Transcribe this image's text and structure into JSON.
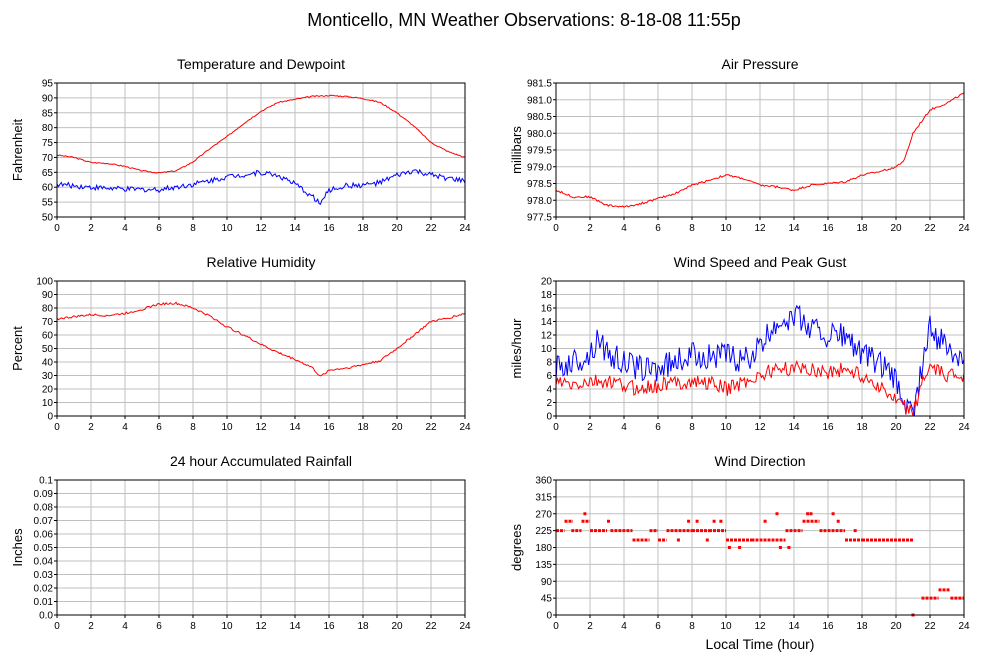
{
  "title": "Monticello, MN Weather Observations: 8-18-08 11:55p",
  "xlabel_main": "Local Time (hour)",
  "colors": {
    "red": "#ff0000",
    "blue": "#0000ff",
    "grid": "#c0c0c0",
    "frame": "#000000"
  },
  "chart_data": [
    {
      "type": "line",
      "title": "Temperature and Dewpoint",
      "ylabel": "Fahrenheit",
      "xlim": [
        0,
        24
      ],
      "ylim": [
        50,
        95
      ],
      "xticks": [
        0,
        2,
        4,
        6,
        8,
        10,
        12,
        14,
        16,
        18,
        20,
        22,
        24
      ],
      "yticks": [
        50,
        55,
        60,
        65,
        70,
        75,
        80,
        85,
        90,
        95
      ],
      "grid": true,
      "series": [
        {
          "color": "#ff0000",
          "noise": 0.2,
          "points": [
            [
              0,
              70.8
            ],
            [
              1,
              70
            ],
            [
              2,
              68.3
            ],
            [
              3,
              68
            ],
            [
              4,
              67
            ],
            [
              5,
              65.5
            ],
            [
              6,
              64.8
            ],
            [
              7,
              65.5
            ],
            [
              8,
              68.5
            ],
            [
              9,
              73
            ],
            [
              10,
              77
            ],
            [
              11,
              81.5
            ],
            [
              12,
              85.5
            ],
            [
              13,
              88.5
            ],
            [
              14,
              89.5
            ],
            [
              15,
              90.5
            ],
            [
              16,
              90.8
            ],
            [
              17,
              90.5
            ],
            [
              18,
              89.8
            ],
            [
              19,
              88.5
            ],
            [
              20,
              85
            ],
            [
              21,
              80.5
            ],
            [
              22,
              75
            ],
            [
              23,
              72
            ],
            [
              24,
              70
            ]
          ]
        },
        {
          "color": "#0000ff",
          "noise": 0.9,
          "points": [
            [
              0,
              61
            ],
            [
              2,
              60
            ],
            [
              4,
              59.3
            ],
            [
              6,
              59.2
            ],
            [
              8,
              61
            ],
            [
              10,
              63.5
            ],
            [
              12,
              65
            ],
            [
              13,
              64
            ],
            [
              14,
              61
            ],
            [
              15,
              57
            ],
            [
              15.5,
              54.5
            ],
            [
              16,
              59
            ],
            [
              17,
              60.5
            ],
            [
              18,
              60.7
            ],
            [
              19,
              61.5
            ],
            [
              20,
              64
            ],
            [
              21,
              65.5
            ],
            [
              22,
              64
            ],
            [
              23,
              63
            ],
            [
              24,
              62
            ]
          ]
        }
      ]
    },
    {
      "type": "line",
      "title": "Air Pressure",
      "ylabel": "millibars",
      "xlim": [
        0,
        24
      ],
      "ylim": [
        977.5,
        981.5
      ],
      "yticks": [
        977.5,
        978.0,
        978.5,
        979.0,
        979.5,
        980.0,
        980.5,
        981.0,
        981.5
      ],
      "ytick_labels": [
        "977.5",
        "978.0",
        "978.5",
        "979.0",
        "979.5",
        "980.0",
        "980.5",
        "981.0",
        "981.5"
      ],
      "xticks": [
        0,
        2,
        4,
        6,
        8,
        10,
        12,
        14,
        16,
        18,
        20,
        22,
        24
      ],
      "grid": true,
      "series": [
        {
          "color": "#ff0000",
          "noise": 0.03,
          "points": [
            [
              0,
              978.3
            ],
            [
              1,
              978.1
            ],
            [
              2,
              978.1
            ],
            [
              3,
              977.85
            ],
            [
              4,
              977.8
            ],
            [
              5,
              977.9
            ],
            [
              6,
              978.05
            ],
            [
              7,
              978.2
            ],
            [
              8,
              978.45
            ],
            [
              9,
              978.6
            ],
            [
              10,
              978.75
            ],
            [
              11,
              978.65
            ],
            [
              12,
              978.45
            ],
            [
              13,
              978.4
            ],
            [
              14,
              978.3
            ],
            [
              15,
              978.45
            ],
            [
              16,
              978.5
            ],
            [
              17,
              978.55
            ],
            [
              18,
              978.75
            ],
            [
              19,
              978.85
            ],
            [
              20,
              979.0
            ],
            [
              20.5,
              979.2
            ],
            [
              21,
              980.0
            ],
            [
              22,
              980.7
            ],
            [
              23,
              980.9
            ],
            [
              24,
              981.2
            ]
          ]
        }
      ]
    },
    {
      "type": "line",
      "title": "Relative Humidity",
      "ylabel": "Percent",
      "xlim": [
        0,
        24
      ],
      "ylim": [
        0,
        100
      ],
      "yticks": [
        0,
        10,
        20,
        30,
        40,
        50,
        60,
        70,
        80,
        90,
        100
      ],
      "xticks": [
        0,
        2,
        4,
        6,
        8,
        10,
        12,
        14,
        16,
        18,
        20,
        22,
        24
      ],
      "grid": true,
      "series": [
        {
          "color": "#ff0000",
          "noise": 0.8,
          "points": [
            [
              0,
              72
            ],
            [
              1,
              73.5
            ],
            [
              2,
              75
            ],
            [
              3,
              74.5
            ],
            [
              4,
              76
            ],
            [
              5,
              79
            ],
            [
              6,
              83
            ],
            [
              7,
              83.5
            ],
            [
              8,
              80
            ],
            [
              9,
              74
            ],
            [
              10,
              66
            ],
            [
              11,
              60
            ],
            [
              12,
              53
            ],
            [
              13,
              47
            ],
            [
              14,
              42
            ],
            [
              15,
              36
            ],
            [
              15.5,
              29
            ],
            [
              16,
              34
            ],
            [
              17,
              35.5
            ],
            [
              18,
              38
            ],
            [
              19,
              41
            ],
            [
              20,
              50
            ],
            [
              21,
              60
            ],
            [
              22,
              70
            ],
            [
              23,
              72.5
            ],
            [
              24,
              76
            ]
          ]
        }
      ]
    },
    {
      "type": "line",
      "title": "Wind Speed and Peak Gust",
      "ylabel": "miles/hour",
      "xlim": [
        0,
        24
      ],
      "ylim": [
        0,
        20
      ],
      "yticks": [
        0,
        2,
        4,
        6,
        8,
        10,
        12,
        14,
        16,
        18,
        20
      ],
      "xticks": [
        0,
        2,
        4,
        6,
        8,
        10,
        12,
        14,
        16,
        18,
        20,
        22,
        24
      ],
      "grid": true,
      "series": [
        {
          "color": "#0000ff",
          "noise": 2.0,
          "points": [
            [
              0,
              7
            ],
            [
              1,
              8
            ],
            [
              2,
              9
            ],
            [
              2.5,
              12
            ],
            [
              3,
              9
            ],
            [
              4,
              8
            ],
            [
              5,
              7
            ],
            [
              6,
              7
            ],
            [
              7,
              8
            ],
            [
              8,
              9
            ],
            [
              9,
              9
            ],
            [
              10,
              9
            ],
            [
              11,
              8
            ],
            [
              12,
              10
            ],
            [
              13,
              14
            ],
            [
              14,
              15
            ],
            [
              15,
              13
            ],
            [
              16,
              12
            ],
            [
              17,
              12
            ],
            [
              18,
              9
            ],
            [
              19,
              8
            ],
            [
              20,
              5
            ],
            [
              20.7,
              1
            ],
            [
              21,
              0
            ],
            [
              21.5,
              7
            ],
            [
              22,
              13
            ],
            [
              23,
              10
            ],
            [
              24,
              9
            ]
          ]
        },
        {
          "color": "#ff0000",
          "noise": 1.1,
          "points": [
            [
              0,
              5
            ],
            [
              1,
              4.5
            ],
            [
              2,
              5
            ],
            [
              3,
              5
            ],
            [
              4,
              4.5
            ],
            [
              5,
              4
            ],
            [
              6,
              4.5
            ],
            [
              7,
              5
            ],
            [
              8,
              5
            ],
            [
              9,
              5
            ],
            [
              10,
              4
            ],
            [
              11,
              5
            ],
            [
              12,
              6
            ],
            [
              13,
              7
            ],
            [
              14,
              7
            ],
            [
              15,
              7
            ],
            [
              16,
              6.5
            ],
            [
              17,
              7
            ],
            [
              18,
              6
            ],
            [
              19,
              4.5
            ],
            [
              20,
              2
            ],
            [
              20.7,
              1
            ],
            [
              21,
              0
            ],
            [
              21.5,
              5
            ],
            [
              22,
              7
            ],
            [
              23,
              6
            ],
            [
              24,
              6
            ]
          ]
        }
      ]
    },
    {
      "type": "line",
      "title": "24 hour Accumulated Rainfall",
      "ylabel": "Inches",
      "xlim": [
        0,
        24
      ],
      "ylim": [
        0,
        0.1
      ],
      "yticks": [
        0,
        0.01,
        0.02,
        0.03,
        0.04,
        0.05,
        0.06,
        0.07,
        0.08,
        0.09,
        0.1
      ],
      "ytick_labels": [
        "0.0",
        "0.01",
        "0.02",
        "0.03",
        "0.04",
        "0.05",
        "0.06",
        "0.07",
        "0.08",
        "0.09",
        "0.1"
      ],
      "xticks": [
        0,
        2,
        4,
        6,
        8,
        10,
        12,
        14,
        16,
        18,
        20,
        22,
        24
      ],
      "grid": true,
      "series": [
        {
          "color": "#ff0000",
          "noise": 0,
          "points": [
            [
              0,
              0
            ],
            [
              24,
              0
            ]
          ]
        }
      ]
    },
    {
      "type": "scatter",
      "title": "Wind Direction",
      "ylabel": "degrees",
      "xlabel": "Local Time (hour)",
      "xlim": [
        0,
        24
      ],
      "ylim": [
        0,
        360
      ],
      "yticks": [
        0,
        45,
        90,
        135,
        180,
        225,
        270,
        315,
        360
      ],
      "xticks": [
        0,
        2,
        4,
        6,
        8,
        10,
        12,
        14,
        16,
        18,
        20,
        22,
        24
      ],
      "grid": true,
      "series": [
        {
          "color": "#ff0000",
          "segments": [
            {
              "x0": 0,
              "x1": 0.5,
              "y": 225
            },
            {
              "x0": 0.5,
              "x1": 1.0,
              "y": 250
            },
            {
              "x0": 0.9,
              "x1": 1.5,
              "y": 225
            },
            {
              "x0": 1.5,
              "x1": 2.0,
              "y": 250
            },
            {
              "x0": 2.0,
              "x1": 3.0,
              "y": 225
            },
            {
              "x0": 3.0,
              "x1": 3.2,
              "y": 250
            },
            {
              "x0": 3.2,
              "x1": 4.5,
              "y": 225
            },
            {
              "x0": 4.5,
              "x1": 5.5,
              "y": 200
            },
            {
              "x0": 5.5,
              "x1": 6.0,
              "y": 225
            },
            {
              "x0": 6.0,
              "x1": 6.5,
              "y": 200
            },
            {
              "x0": 6.5,
              "x1": 8.0,
              "y": 225
            },
            {
              "x0": 8.0,
              "x1": 9.0,
              "y": 225
            },
            {
              "x0": 9.0,
              "x1": 10.0,
              "y": 225
            },
            {
              "x0": 10.0,
              "x1": 11.5,
              "y": 200
            },
            {
              "x0": 11.5,
              "x1": 13.5,
              "y": 200
            },
            {
              "x0": 13.5,
              "x1": 14.5,
              "y": 225
            },
            {
              "x0": 14.5,
              "x1": 15.5,
              "y": 250
            },
            {
              "x0": 15.5,
              "x1": 17.0,
              "y": 225
            },
            {
              "x0": 17.0,
              "x1": 18.0,
              "y": 200
            },
            {
              "x0": 18.0,
              "x1": 21.0,
              "y": 200
            },
            {
              "x0": 21.5,
              "x1": 22.5,
              "y": 45
            },
            {
              "x0": 22.5,
              "x1": 23.2,
              "y": 67
            },
            {
              "x0": 23.2,
              "x1": 24.0,
              "y": 45
            }
          ],
          "points": [
            [
              1.7,
              270
            ],
            [
              7.8,
              250
            ],
            [
              8.3,
              250
            ],
            [
              9.3,
              250
            ],
            [
              9.7,
              250
            ],
            [
              10.2,
              180
            ],
            [
              10.8,
              180
            ],
            [
              12.3,
              250
            ],
            [
              13.0,
              270
            ],
            [
              13.2,
              180
            ],
            [
              13.7,
              180
            ],
            [
              14.8,
              270
            ],
            [
              15.0,
              270
            ],
            [
              16.3,
              270
            ],
            [
              16.6,
              250
            ],
            [
              7.2,
              200
            ],
            [
              8.9,
              200
            ],
            [
              17.6,
              225
            ],
            [
              21.0,
              0
            ]
          ]
        }
      ]
    }
  ]
}
